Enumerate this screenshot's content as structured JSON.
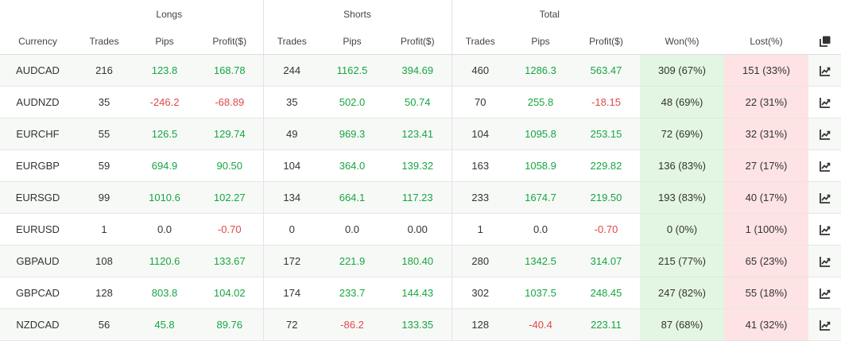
{
  "groups": {
    "longs": "Longs",
    "shorts": "Shorts",
    "total": "Total"
  },
  "columns": {
    "currency": "Currency",
    "trades": "Trades",
    "pips": "Pips",
    "profit": "Profit($)",
    "won": "Won(%)",
    "lost": "Lost(%)"
  },
  "header_icon": "copy-icon",
  "row_icon": "chart-line-icon",
  "colors": {
    "positive": "#17a642",
    "negative": "#e04848",
    "won_bg": "#e3f6e3",
    "lost_bg": "#fde3e3"
  },
  "rows": [
    {
      "currency": "AUDCAD",
      "l_trades": "216",
      "l_pips": "123.8",
      "l_profit": "168.78",
      "s_trades": "244",
      "s_pips": "1162.5",
      "s_profit": "394.69",
      "t_trades": "460",
      "t_pips": "1286.3",
      "t_profit": "563.47",
      "won": "309 (67%)",
      "lost": "151 (33%)"
    },
    {
      "currency": "AUDNZD",
      "l_trades": "35",
      "l_pips": "-246.2",
      "l_profit": "-68.89",
      "s_trades": "35",
      "s_pips": "502.0",
      "s_profit": "50.74",
      "t_trades": "70",
      "t_pips": "255.8",
      "t_profit": "-18.15",
      "won": "48 (69%)",
      "lost": "22 (31%)"
    },
    {
      "currency": "EURCHF",
      "l_trades": "55",
      "l_pips": "126.5",
      "l_profit": "129.74",
      "s_trades": "49",
      "s_pips": "969.3",
      "s_profit": "123.41",
      "t_trades": "104",
      "t_pips": "1095.8",
      "t_profit": "253.15",
      "won": "72 (69%)",
      "lost": "32 (31%)"
    },
    {
      "currency": "EURGBP",
      "l_trades": "59",
      "l_pips": "694.9",
      "l_profit": "90.50",
      "s_trades": "104",
      "s_pips": "364.0",
      "s_profit": "139.32",
      "t_trades": "163",
      "t_pips": "1058.9",
      "t_profit": "229.82",
      "won": "136 (83%)",
      "lost": "27 (17%)"
    },
    {
      "currency": "EURSGD",
      "l_trades": "99",
      "l_pips": "1010.6",
      "l_profit": "102.27",
      "s_trades": "134",
      "s_pips": "664.1",
      "s_profit": "117.23",
      "t_trades": "233",
      "t_pips": "1674.7",
      "t_profit": "219.50",
      "won": "193 (83%)",
      "lost": "40 (17%)"
    },
    {
      "currency": "EURUSD",
      "l_trades": "1",
      "l_pips": "0.0",
      "l_profit": "-0.70",
      "s_trades": "0",
      "s_pips": "0.0",
      "s_profit": "0.00",
      "t_trades": "1",
      "t_pips": "0.0",
      "t_profit": "-0.70",
      "won": "0 (0%)",
      "lost": "1 (100%)"
    },
    {
      "currency": "GBPAUD",
      "l_trades": "108",
      "l_pips": "1120.6",
      "l_profit": "133.67",
      "s_trades": "172",
      "s_pips": "221.9",
      "s_profit": "180.40",
      "t_trades": "280",
      "t_pips": "1342.5",
      "t_profit": "314.07",
      "won": "215 (77%)",
      "lost": "65 (23%)"
    },
    {
      "currency": "GBPCAD",
      "l_trades": "128",
      "l_pips": "803.8",
      "l_profit": "104.02",
      "s_trades": "174",
      "s_pips": "233.7",
      "s_profit": "144.43",
      "t_trades": "302",
      "t_pips": "1037.5",
      "t_profit": "248.45",
      "won": "247 (82%)",
      "lost": "55 (18%)"
    },
    {
      "currency": "NZDCAD",
      "l_trades": "56",
      "l_pips": "45.8",
      "l_profit": "89.76",
      "s_trades": "72",
      "s_pips": "-86.2",
      "s_profit": "133.35",
      "t_trades": "128",
      "t_pips": "-40.4",
      "t_profit": "223.11",
      "won": "87 (68%)",
      "lost": "41 (32%)"
    }
  ]
}
